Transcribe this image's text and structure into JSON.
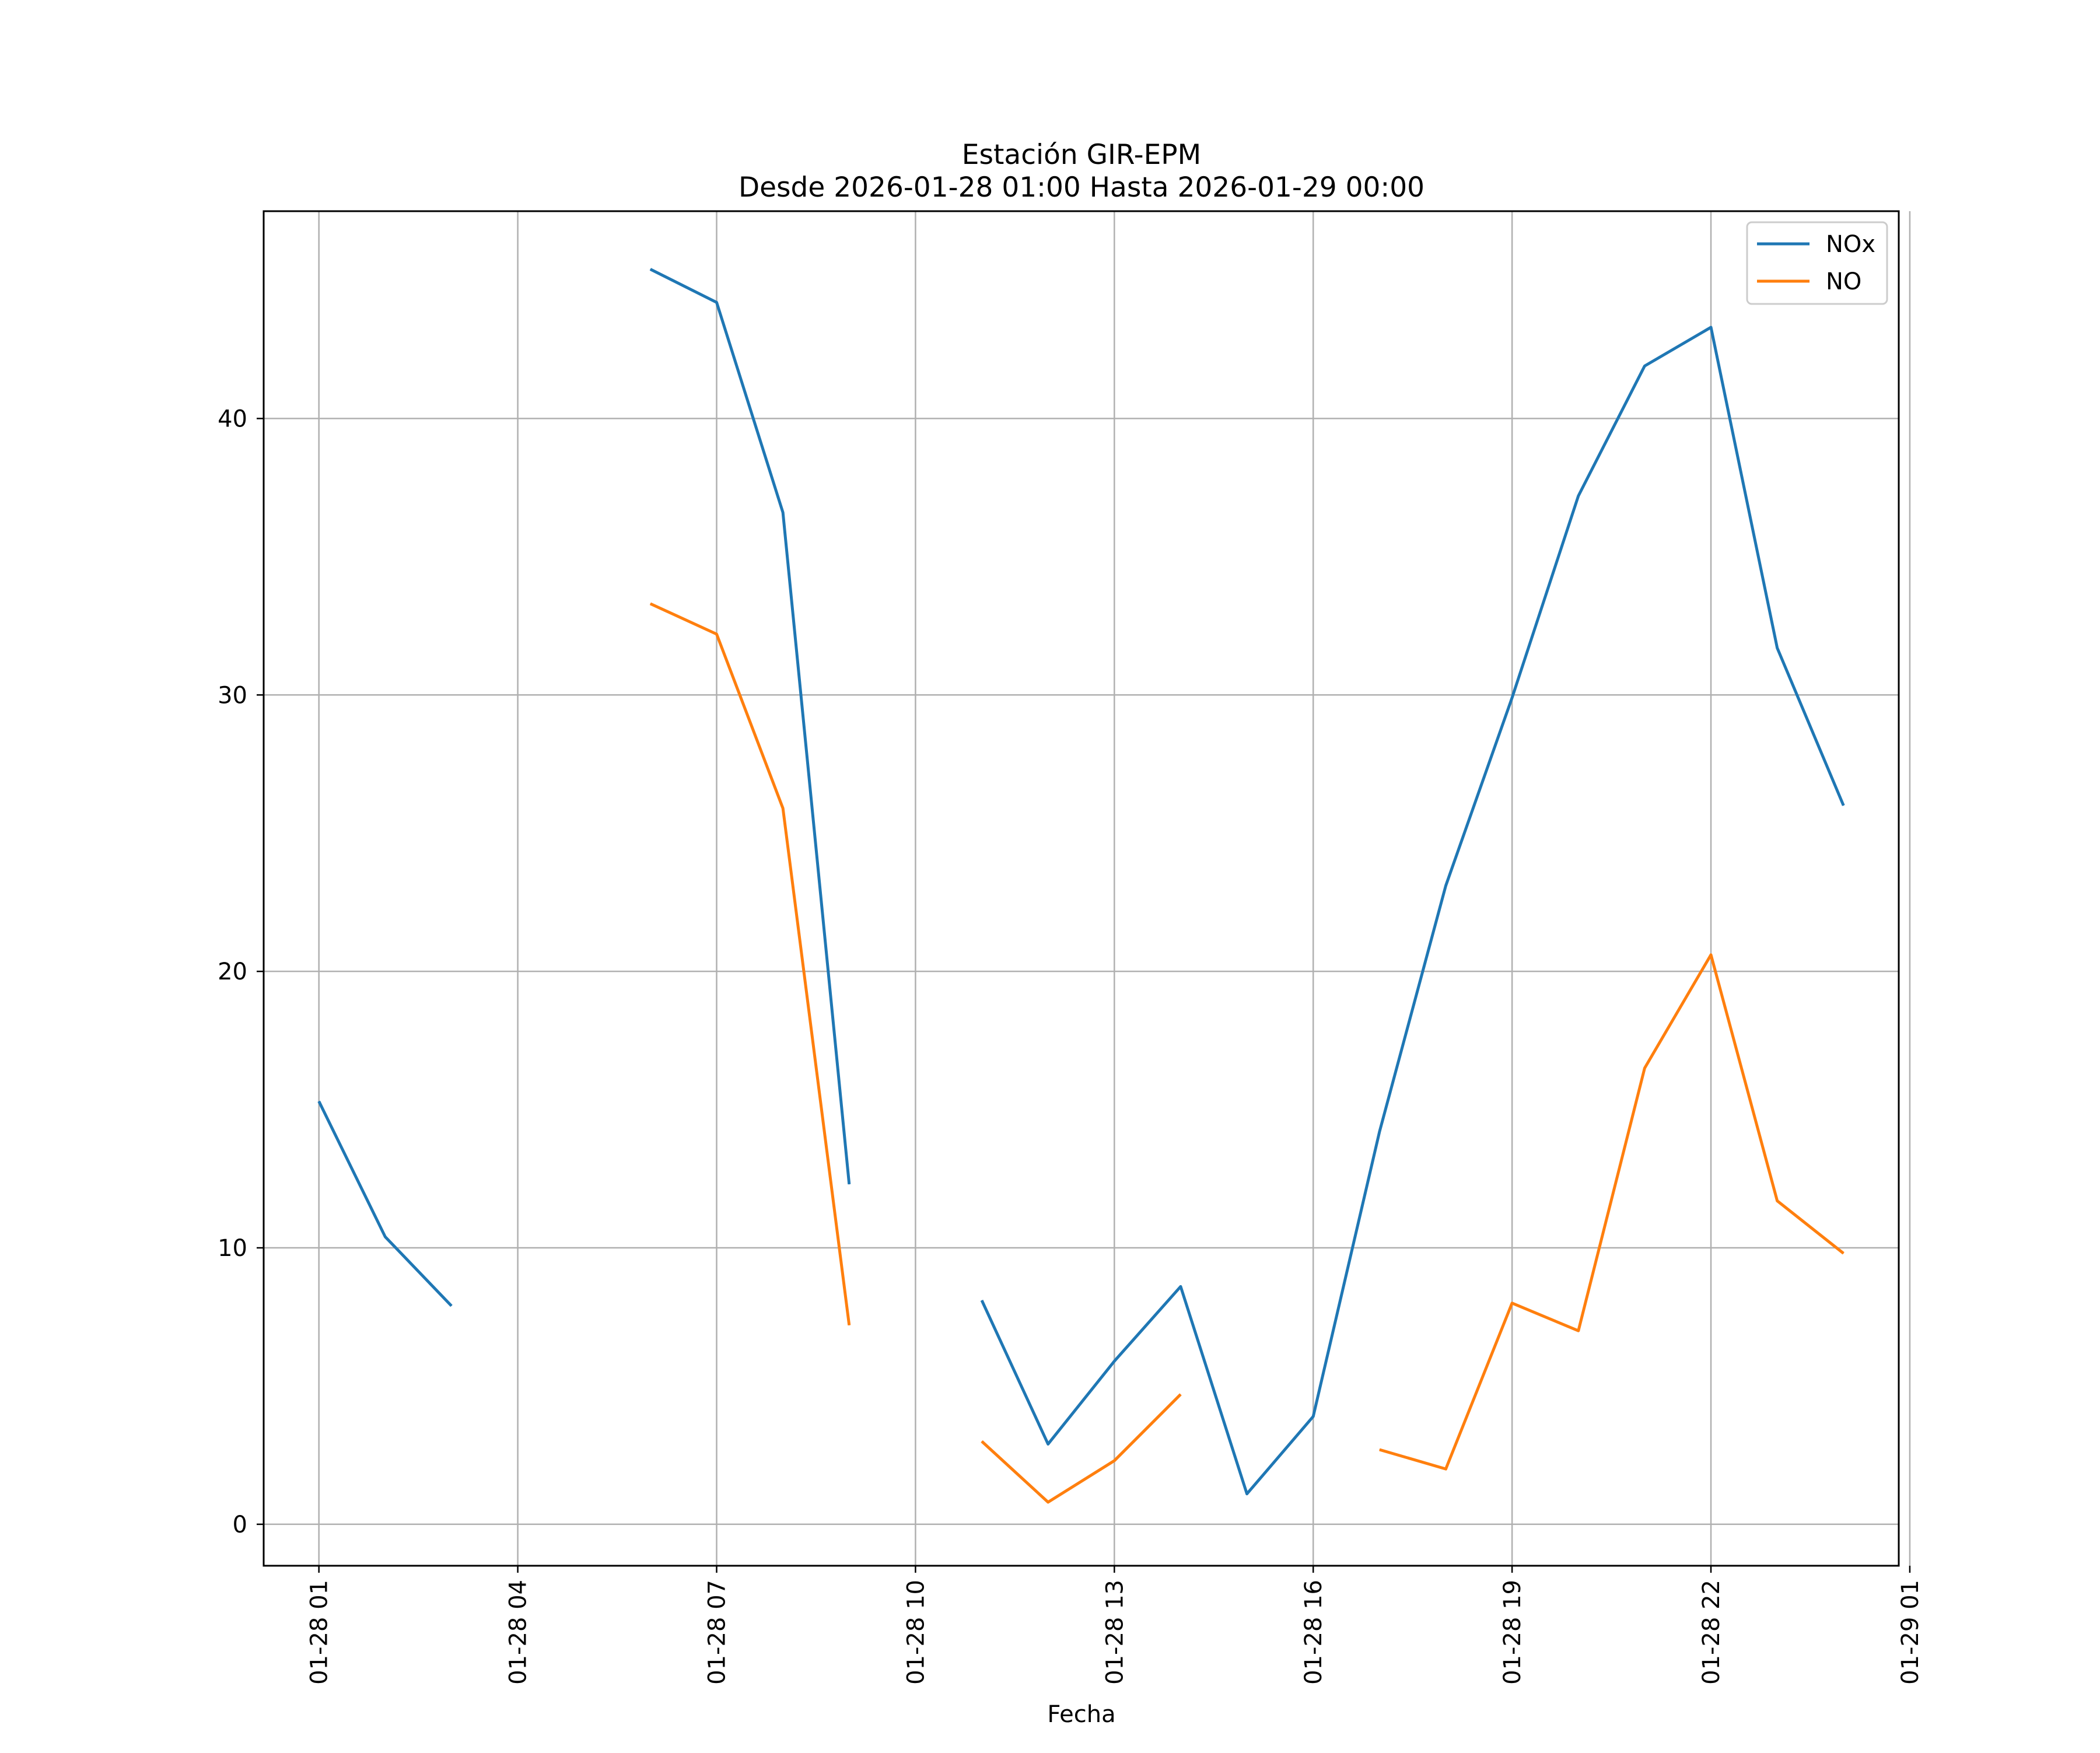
{
  "chart_data": {
    "type": "line",
    "title_line1": "Estación GIR-EPM",
    "title_line2": "Desde 2026-01-28 01:00 Hasta 2026-01-29 00:00",
    "xlabel": "Fecha",
    "ylabel": "",
    "xlim": [
      "2026-01-28 00:10",
      "2026-01-29 00:50"
    ],
    "ylim": [
      -1.5,
      47.5
    ],
    "x_ticks": [
      {
        "t": "2026-01-28 01:00",
        "label": "01-28 01"
      },
      {
        "t": "2026-01-28 04:00",
        "label": "01-28 04"
      },
      {
        "t": "2026-01-28 07:00",
        "label": "01-28 07"
      },
      {
        "t": "2026-01-28 10:00",
        "label": "01-28 10"
      },
      {
        "t": "2026-01-28 13:00",
        "label": "01-28 13"
      },
      {
        "t": "2026-01-28 16:00",
        "label": "01-28 16"
      },
      {
        "t": "2026-01-28 19:00",
        "label": "01-28 19"
      },
      {
        "t": "2026-01-28 22:00",
        "label": "01-28 22"
      },
      {
        "t": "2026-01-29 01:00",
        "label": "01-29 01"
      }
    ],
    "y_ticks": [
      0,
      10,
      20,
      30,
      40
    ],
    "grid": true,
    "legend_position": "top-right",
    "x": [
      "2026-01-28 01:00",
      "2026-01-28 02:00",
      "2026-01-28 03:00",
      "2026-01-28 04:00",
      "2026-01-28 05:00",
      "2026-01-28 06:00",
      "2026-01-28 07:00",
      "2026-01-28 08:00",
      "2026-01-28 09:00",
      "2026-01-28 10:00",
      "2026-01-28 11:00",
      "2026-01-28 12:00",
      "2026-01-28 13:00",
      "2026-01-28 14:00",
      "2026-01-28 15:00",
      "2026-01-28 16:00",
      "2026-01-28 17:00",
      "2026-01-28 18:00",
      "2026-01-28 19:00",
      "2026-01-28 20:00",
      "2026-01-28 21:00",
      "2026-01-28 22:00",
      "2026-01-28 23:00",
      "2026-01-29 00:00"
    ],
    "series": [
      {
        "name": "NOx",
        "color": "#1f77b4",
        "values": [
          15.3,
          10.4,
          7.9,
          null,
          null,
          45.4,
          44.2,
          36.6,
          12.3,
          null,
          8.1,
          2.9,
          5.9,
          8.6,
          1.1,
          3.9,
          14.2,
          23.1,
          29.9,
          37.2,
          41.9,
          43.3,
          31.7,
          26.0
        ]
      },
      {
        "name": "NO",
        "color": "#ff7f0e",
        "values": [
          null,
          null,
          null,
          null,
          null,
          33.3,
          32.2,
          25.9,
          7.2,
          null,
          3.0,
          0.8,
          2.3,
          4.7,
          null,
          null,
          2.7,
          2.0,
          8.0,
          7.0,
          16.5,
          20.6,
          11.7,
          9.8
        ]
      }
    ]
  }
}
